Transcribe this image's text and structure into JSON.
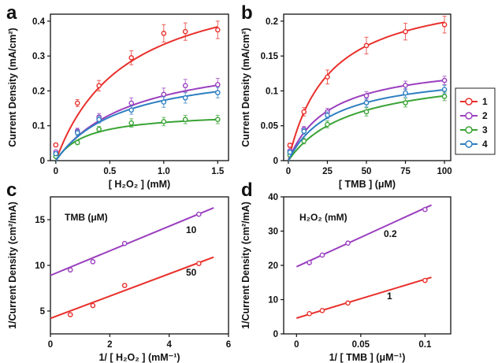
{
  "panel_letters": [
    "a",
    "b",
    "c",
    "d"
  ],
  "legend": {
    "entries": [
      {
        "label": "1",
        "color": "#e8302c"
      },
      {
        "label": "2",
        "color": "#9a3fbf"
      },
      {
        "label": "3",
        "color": "#3aa335"
      },
      {
        "label": "4",
        "color": "#2e7fc1"
      }
    ]
  },
  "chart_data": [
    {
      "panel": "a",
      "type": "scatter",
      "fit": "michaelis-menten",
      "xlabel": "[ H₂O₂ ] (mM)",
      "ylabel": "Current Density (mA/cm²)",
      "xlim": [
        -0.05,
        1.6
      ],
      "ylim": [
        0,
        0.42
      ],
      "xticks": [
        0,
        0.5,
        1.0,
        1.5
      ],
      "xtick_labels": [
        "0",
        "0.5",
        "1.0",
        "1.5"
      ],
      "yticks": [
        0,
        0.1,
        0.2,
        0.3,
        0.4
      ],
      "ytick_labels": [
        "0",
        "0.1",
        "0.2",
        "0.3",
        "0.4"
      ],
      "x": [
        0,
        0.2,
        0.4,
        0.7,
        1.0,
        1.2,
        1.5
      ],
      "series": [
        {
          "name": "1",
          "color": "#e8302c",
          "values": [
            0.045,
            0.165,
            0.215,
            0.295,
            0.365,
            0.37,
            0.375
          ],
          "errors": [
            0.005,
            0.01,
            0.015,
            0.02,
            0.025,
            0.025,
            0.025
          ],
          "vmax": 0.55,
          "km": 0.65
        },
        {
          "name": "2",
          "color": "#9a3fbf",
          "values": [
            0.025,
            0.085,
            0.125,
            0.165,
            0.19,
            0.215,
            0.218
          ],
          "errors": [
            0.004,
            0.008,
            0.01,
            0.015,
            0.018,
            0.018,
            0.018
          ],
          "vmax": 0.32,
          "km": 0.72
        },
        {
          "name": "3",
          "color": "#3aa335",
          "values": [
            0.012,
            0.052,
            0.09,
            0.108,
            0.112,
            0.118,
            0.118
          ],
          "errors": [
            0.003,
            0.006,
            0.008,
            0.012,
            0.012,
            0.012,
            0.012
          ],
          "vmax": 0.14,
          "km": 0.28
        },
        {
          "name": "4",
          "color": "#2e7fc1",
          "values": [
            0.02,
            0.08,
            0.118,
            0.145,
            0.168,
            0.18,
            0.195
          ],
          "errors": [
            0.004,
            0.008,
            0.01,
            0.012,
            0.015,
            0.015,
            0.015
          ],
          "vmax": 0.28,
          "km": 0.62
        }
      ]
    },
    {
      "panel": "b",
      "type": "scatter",
      "fit": "michaelis-menten",
      "xlabel": "[ TMB ] (μM)",
      "ylabel": "Current Density (mA/cm²)",
      "xlim": [
        -3,
        104
      ],
      "ylim": [
        0,
        0.21
      ],
      "xticks": [
        0,
        25,
        50,
        75,
        100
      ],
      "xtick_labels": [
        "0",
        "25",
        "50",
        "75",
        "100"
      ],
      "yticks": [
        0,
        0.05,
        0.1,
        0.15,
        0.2
      ],
      "ytick_labels": [
        "0",
        "0.05",
        "0.1",
        "0.15",
        "0.2"
      ],
      "x": [
        1,
        10,
        25,
        50,
        75,
        100
      ],
      "series": [
        {
          "name": "1",
          "color": "#e8302c",
          "values": [
            0.022,
            0.07,
            0.12,
            0.165,
            0.185,
            0.195
          ],
          "errors": [
            0.003,
            0.006,
            0.01,
            0.012,
            0.012,
            0.012
          ],
          "vmax": 0.25,
          "km": 26
        },
        {
          "name": "2",
          "color": "#9a3fbf",
          "values": [
            0.014,
            0.045,
            0.07,
            0.093,
            0.108,
            0.115
          ],
          "errors": [
            0.002,
            0.004,
            0.005,
            0.006,
            0.006,
            0.006
          ],
          "vmax": 0.145,
          "km": 26
        },
        {
          "name": "3",
          "color": "#3aa335",
          "values": [
            0.008,
            0.028,
            0.052,
            0.07,
            0.083,
            0.092
          ],
          "errors": [
            0.002,
            0.004,
            0.005,
            0.006,
            0.006,
            0.006
          ],
          "vmax": 0.13,
          "km": 40
        },
        {
          "name": "4",
          "color": "#2e7fc1",
          "values": [
            0.012,
            0.042,
            0.065,
            0.083,
            0.097,
            0.102
          ],
          "errors": [
            0.002,
            0.004,
            0.005,
            0.006,
            0.006,
            0.006
          ],
          "vmax": 0.13,
          "km": 28
        }
      ]
    },
    {
      "panel": "c",
      "type": "scatter",
      "fit": "linear",
      "xlabel": "1/ [ H₂O₂ ] (mM⁻¹)",
      "ylabel": "1/Current Density (cm²/mA)",
      "annotation_title": "TMB (μM)",
      "xlim": [
        0,
        6
      ],
      "ylim": [
        2.5,
        17.5
      ],
      "xticks": [
        0,
        2,
        4,
        6
      ],
      "xtick_labels": [
        "0",
        "2",
        "4",
        "6"
      ],
      "yticks": [
        5,
        10,
        15
      ],
      "ytick_labels": [
        "5",
        "10",
        "15"
      ],
      "series": [
        {
          "name": "10",
          "color": "#9a3fbf",
          "x": [
            0.67,
            1.43,
            2.5,
            5.0
          ],
          "values": [
            9.5,
            10.4,
            12.4,
            15.6
          ],
          "fit_line": {
            "x": [
              0,
              5.5
            ],
            "y": [
              8.9,
              16.3
            ]
          }
        },
        {
          "name": "50",
          "color": "#e8302c",
          "x": [
            0.67,
            1.43,
            2.5,
            5.0
          ],
          "values": [
            4.6,
            5.6,
            7.8,
            10.2
          ],
          "fit_line": {
            "x": [
              0,
              5.5
            ],
            "y": [
              4.2,
              10.9
            ]
          }
        }
      ]
    },
    {
      "panel": "d",
      "type": "scatter",
      "fit": "linear",
      "xlabel": "1/ [ TMB ] (μM⁻¹)",
      "ylabel": "1/Current Density (cm²/mA)",
      "annotation_title": "H₂O₂ (mM)",
      "xlim": [
        -0.01,
        0.12
      ],
      "ylim": [
        0,
        40
      ],
      "xticks": [
        0,
        0.05,
        0.1
      ],
      "xtick_labels": [
        "0",
        "0.05",
        "0.1"
      ],
      "yticks": [
        0,
        10,
        20,
        30,
        40
      ],
      "ytick_labels": [
        "0",
        "10",
        "20",
        "30",
        "40"
      ],
      "series": [
        {
          "name": "0.2",
          "color": "#9a3fbf",
          "x": [
            0.01,
            0.02,
            0.04,
            0.1
          ],
          "values": [
            20.8,
            23.0,
            26.5,
            36.3
          ],
          "fit_line": {
            "x": [
              0,
              0.105
            ],
            "y": [
              19.6,
              37.6
            ]
          }
        },
        {
          "name": "1",
          "color": "#e8302c",
          "x": [
            0.01,
            0.02,
            0.04,
            0.1
          ],
          "values": [
            5.9,
            6.8,
            9.0,
            15.6
          ],
          "fit_line": {
            "x": [
              0,
              0.105
            ],
            "y": [
              4.6,
              16.5
            ]
          }
        }
      ]
    }
  ]
}
